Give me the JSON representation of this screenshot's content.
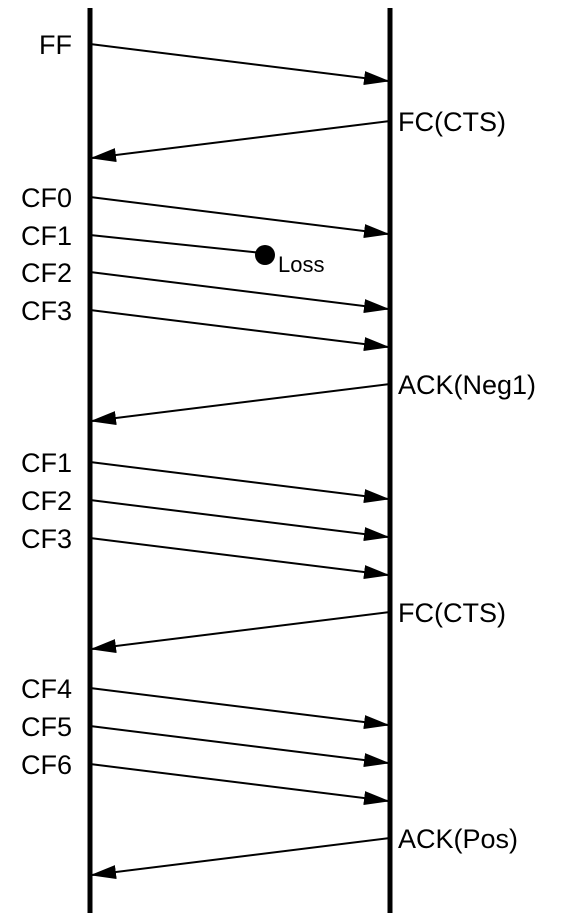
{
  "diagram": {
    "type": "sequence",
    "lifelines": [
      {
        "name": "left-lifeline"
      },
      {
        "name": "right-lifeline"
      }
    ],
    "messages": [
      {
        "label": "FF",
        "direction": "right"
      },
      {
        "label": "FC(CTS)",
        "direction": "left"
      },
      {
        "label": "CF0",
        "direction": "right"
      },
      {
        "label": "CF1",
        "direction": "right",
        "lost": true,
        "loss_label": "Loss"
      },
      {
        "label": "CF2",
        "direction": "right"
      },
      {
        "label": "CF3",
        "direction": "right"
      },
      {
        "label": "ACK(Neg1)",
        "direction": "left"
      },
      {
        "label": "CF1",
        "direction": "right"
      },
      {
        "label": "CF2",
        "direction": "right"
      },
      {
        "label": "CF3",
        "direction": "right"
      },
      {
        "label": "FC(CTS)",
        "direction": "left"
      },
      {
        "label": "CF4",
        "direction": "right"
      },
      {
        "label": "CF5",
        "direction": "right"
      },
      {
        "label": "CF6",
        "direction": "right"
      },
      {
        "label": "ACK(Pos)",
        "direction": "left"
      }
    ]
  }
}
